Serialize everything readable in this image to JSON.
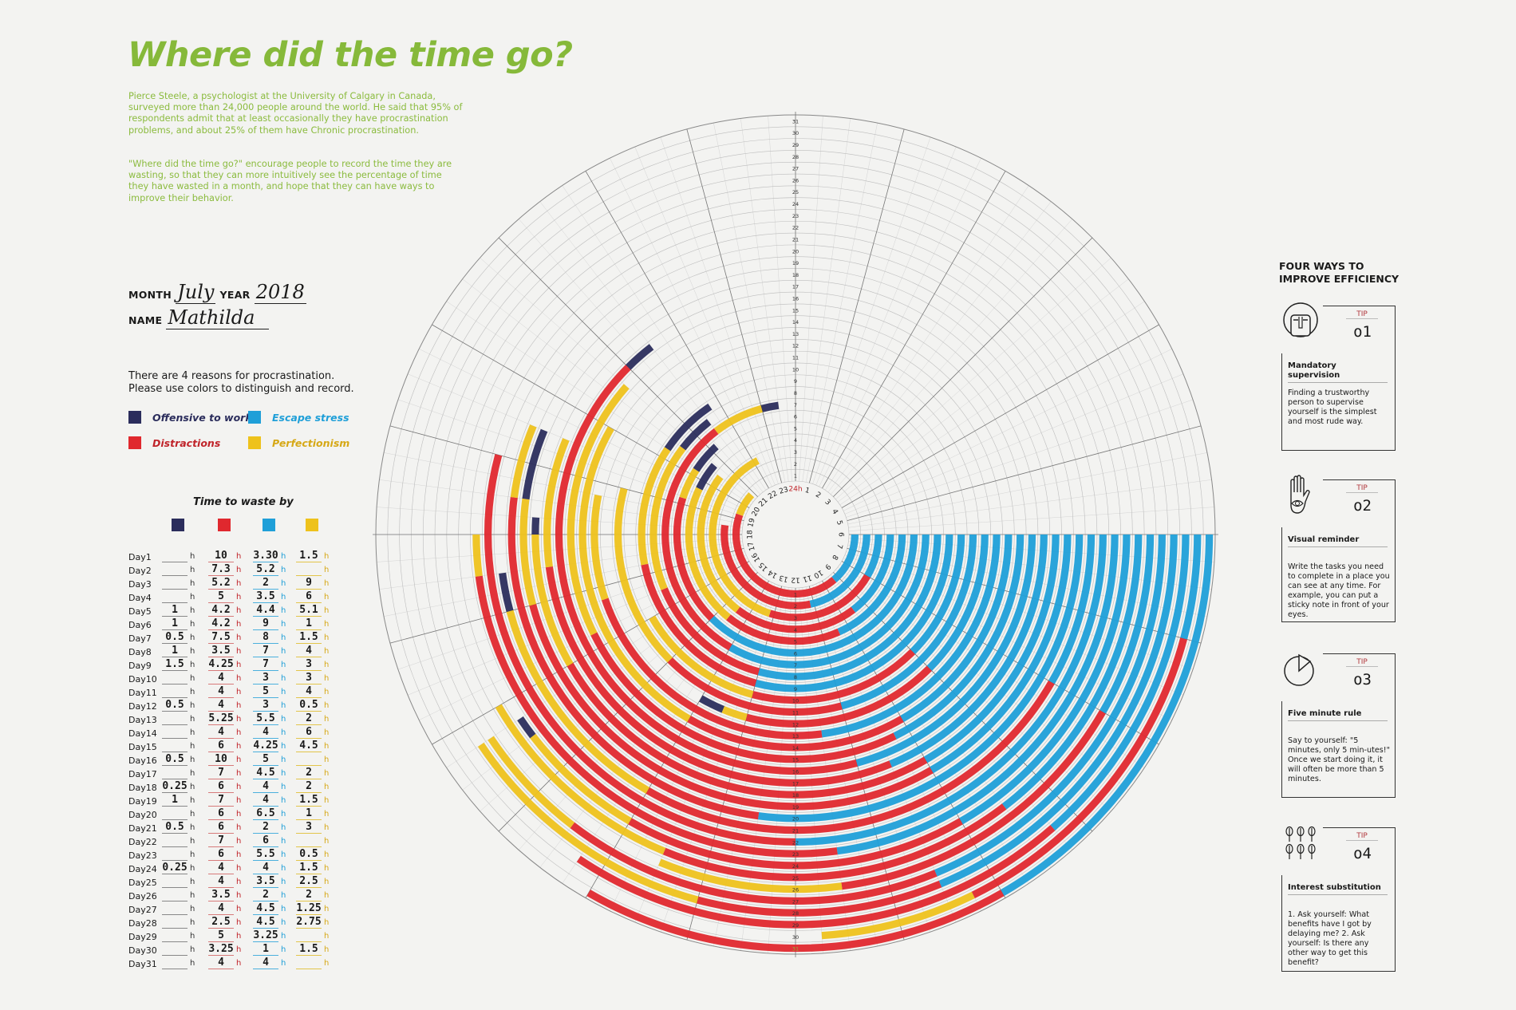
{
  "title": "Where did the time go?",
  "intro": [
    "Pierce Steele, a psychologist at the University of Calgary in Canada, surveyed more than 24,000 people around the world. He said that 95% of respondents admit that at least occasionally they have procrastination problems, and about 25% of them have Chronic procrastination.",
    "\"Where did the time go?\" encourage people to record the time they are wasting, so that they can more intuitively see the percentage of time they have wasted in a month, and hope that they can have ways to improve their behavior."
  ],
  "form": {
    "month_label": "MONTH",
    "month": "July",
    "year_label": "YEAR",
    "year": "2018",
    "name_label": "NAME",
    "name": "Mathilda"
  },
  "reasons_text": [
    "There are 4 reasons for procrastination.",
    "Please use colors to distinguish and record."
  ],
  "legend": [
    {
      "label": "Offensive to work",
      "color": "#2b2d5c"
    },
    {
      "label": "Escape stress",
      "color": "#1f9fd8"
    },
    {
      "label": "Distractions",
      "color": "#e0282e"
    },
    {
      "label": "Perfectionism",
      "color": "#eec21c"
    }
  ],
  "table": {
    "title": "Time to waste by",
    "unit": "h",
    "column_colors": [
      "#2b2d5c",
      "#e0282e",
      "#1f9fd8",
      "#eec21c"
    ],
    "rows": [
      {
        "day": "Day1",
        "v": [
          "",
          "10",
          "3.30",
          "1.5"
        ]
      },
      {
        "day": "Day2",
        "v": [
          "",
          "7.3",
          "5.2",
          ""
        ]
      },
      {
        "day": "Day3",
        "v": [
          "",
          "5.2",
          "2",
          "9"
        ]
      },
      {
        "day": "Day4",
        "v": [
          "",
          "5",
          "3.5",
          "6"
        ]
      },
      {
        "day": "Day5",
        "v": [
          "1",
          "4.2",
          "4.4",
          "5.1"
        ]
      },
      {
        "day": "Day6",
        "v": [
          "1",
          "4.2",
          "9",
          "1"
        ]
      },
      {
        "day": "Day7",
        "v": [
          "0.5",
          "7.5",
          "8",
          "1.5"
        ]
      },
      {
        "day": "Day8",
        "v": [
          "1",
          "3.5",
          "7",
          "4"
        ]
      },
      {
        "day": "Day9",
        "v": [
          "1.5",
          "4.25",
          "7",
          "3"
        ]
      },
      {
        "day": "Day10",
        "v": [
          "",
          "4",
          "3",
          "3"
        ]
      },
      {
        "day": "Day11",
        "v": [
          "",
          "4",
          "5",
          "4"
        ]
      },
      {
        "day": "Day12",
        "v": [
          "0.5",
          "4",
          "3",
          "0.5"
        ]
      },
      {
        "day": "Day13",
        "v": [
          "",
          "5.25",
          "5.5",
          "2"
        ]
      },
      {
        "day": "Day14",
        "v": [
          "",
          "4",
          "4",
          "6"
        ]
      },
      {
        "day": "Day15",
        "v": [
          "",
          "6",
          "4.25",
          "4.5"
        ]
      },
      {
        "day": "Day16",
        "v": [
          "0.5",
          "10",
          "5",
          ""
        ]
      },
      {
        "day": "Day17",
        "v": [
          "",
          "7",
          "4.5",
          "2"
        ]
      },
      {
        "day": "Day18",
        "v": [
          "0.25",
          "6",
          "4",
          "2"
        ]
      },
      {
        "day": "Day19",
        "v": [
          "1",
          "7",
          "4",
          "1.5"
        ]
      },
      {
        "day": "Day20",
        "v": [
          "",
          "6",
          "6.5",
          "1"
        ]
      },
      {
        "day": "Day21",
        "v": [
          "0.5",
          "6",
          "2",
          "3"
        ]
      },
      {
        "day": "Day22",
        "v": [
          "",
          "7",
          "6",
          ""
        ]
      },
      {
        "day": "Day23",
        "v": [
          "",
          "6",
          "5.5",
          "0.5"
        ]
      },
      {
        "day": "Day24",
        "v": [
          "0.25",
          "4",
          "4",
          "1.5"
        ]
      },
      {
        "day": "Day25",
        "v": [
          "",
          "4",
          "3.5",
          "2.5"
        ]
      },
      {
        "day": "Day26",
        "v": [
          "",
          "3.5",
          "2",
          "2"
        ]
      },
      {
        "day": "Day27",
        "v": [
          "",
          "4",
          "4.5",
          "1.25"
        ]
      },
      {
        "day": "Day28",
        "v": [
          "",
          "2.5",
          "4.5",
          "2.75"
        ]
      },
      {
        "day": "Day29",
        "v": [
          "",
          "5",
          "3.25",
          ""
        ]
      },
      {
        "day": "Day30",
        "v": [
          "",
          "3.25",
          "1",
          "1.5"
        ]
      },
      {
        "day": "Day31",
        "v": [
          "",
          "4",
          "4",
          ""
        ]
      }
    ]
  },
  "tips_heading": [
    "FOUR WAYS TO",
    "IMPROVE EFFICIENCY"
  ],
  "tips": [
    {
      "tag": "TIP",
      "num": "o1",
      "icon": "face-icon",
      "title": "Mandatory supervision",
      "text": "Finding a trustworthy person to supervise yourself is the simplest and most rude way."
    },
    {
      "tag": "TIP",
      "num": "o2",
      "icon": "hand-eye-icon",
      "title": "Visual reminder",
      "text": "Write the tasks you need to complete in a place you can see at any time. For example, you can put a sticky note in front of your eyes."
    },
    {
      "tag": "TIP",
      "num": "o3",
      "icon": "pie-clock-icon",
      "title": "Five minute rule",
      "text": "Say to yourself: \"5 minutes, only 5 min-utes!\" Once we start doing it, it will often be more than 5 minutes."
    },
    {
      "tag": "TIP",
      "num": "o4",
      "icon": "trees-icon",
      "title": "Interest substitution",
      "text": "1. Ask yourself: What benefits have I got by delaying me? 2. Ask yourself: Is there any other way to get this benefit?"
    }
  ],
  "chart_data": {
    "type": "radial-bar",
    "angular_axis": {
      "label_start": "24h",
      "ticks": [
        "24h",
        "1",
        "2",
        "3",
        "4",
        "5",
        "6",
        "7",
        "8",
        "9",
        "10",
        "11",
        "12",
        "13",
        "14",
        "15",
        "16",
        "17",
        "18",
        "19",
        "20",
        "21",
        "22",
        "23"
      ]
    },
    "radial_axis": {
      "ticks": [
        1,
        2,
        3,
        4,
        5,
        6,
        7,
        8,
        9,
        10,
        11,
        12,
        13,
        14,
        15,
        16,
        17,
        18,
        19,
        20,
        21,
        22,
        23,
        24,
        25,
        26,
        27,
        28,
        29,
        30,
        31
      ]
    },
    "categories": [
      "Day1",
      "Day2",
      "Day3",
      "Day4",
      "Day5",
      "Day6",
      "Day7",
      "Day8",
      "Day9",
      "Day10",
      "Day11",
      "Day12",
      "Day13",
      "Day14",
      "Day15",
      "Day16",
      "Day17",
      "Day18",
      "Day19",
      "Day20",
      "Day21",
      "Day22",
      "Day23",
      "Day24",
      "Day25",
      "Day26",
      "Day27",
      "Day28",
      "Day29",
      "Day30",
      "Day31"
    ],
    "series": [
      {
        "name": "Offensive to work",
        "color": "#2b2d5c",
        "values": [
          0,
          0,
          0,
          0,
          1,
          1,
          0.5,
          1,
          1.5,
          0,
          0,
          0.5,
          0,
          0,
          0,
          0.5,
          0,
          0.25,
          1,
          0,
          0.5,
          0,
          0,
          0.25,
          0,
          0,
          0,
          0,
          0,
          0,
          0
        ]
      },
      {
        "name": "Distractions",
        "color": "#e0282e",
        "values": [
          10,
          7.3,
          5.2,
          5,
          4.2,
          4.2,
          7.5,
          3.5,
          4.25,
          4,
          4,
          4,
          5.25,
          4,
          6,
          10,
          7,
          6,
          7,
          6,
          6,
          7,
          6,
          4,
          4,
          3.5,
          4,
          2.5,
          5,
          3.25,
          4
        ]
      },
      {
        "name": "Escape stress",
        "color": "#1f9fd8",
        "values": [
          3.3,
          5.2,
          2,
          3.5,
          4.4,
          9,
          8,
          7,
          7,
          3,
          5,
          3,
          5.5,
          4,
          4.25,
          5,
          4.5,
          4,
          4,
          6.5,
          2,
          6,
          5.5,
          4,
          3.5,
          2,
          4.5,
          4.5,
          3.25,
          1,
          4
        ]
      },
      {
        "name": "Perfectionism",
        "color": "#eec21c",
        "values": [
          1.5,
          0,
          9,
          6,
          5.1,
          1,
          1.5,
          4,
          3,
          3,
          4,
          0.5,
          2,
          6,
          4.5,
          0,
          2,
          2,
          1.5,
          1,
          3,
          0,
          0.5,
          1.5,
          2.5,
          2,
          1.25,
          2.75,
          0,
          1.5,
          0
        ]
      }
    ],
    "unit": "h"
  }
}
